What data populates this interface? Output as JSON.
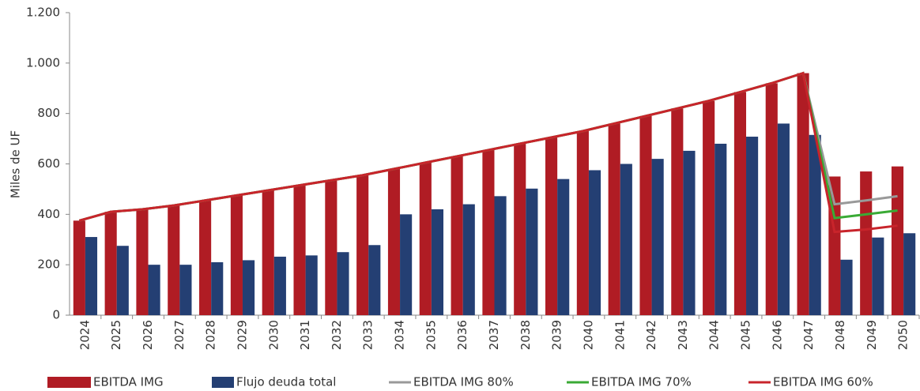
{
  "chart_data": {
    "type": "bar",
    "y_label": "Miles de UF",
    "categories": [
      "2024",
      "2025",
      "2026",
      "2027",
      "2028",
      "2029",
      "2030",
      "2031",
      "2032",
      "2033",
      "2034",
      "2035",
      "2036",
      "2037",
      "2038",
      "2039",
      "2040",
      "2041",
      "2042",
      "2043",
      "2044",
      "2045",
      "2046",
      "2047",
      "2048",
      "2049",
      "2050"
    ],
    "series": [
      {
        "name": "EBITDA IMG",
        "type": "bar",
        "color": "#b01c24",
        "values": [
          375,
          410,
          420,
          435,
          455,
          475,
          495,
          515,
          535,
          555,
          580,
          605,
          630,
          655,
          680,
          705,
          730,
          760,
          790,
          820,
          850,
          885,
          920,
          960,
          550,
          570,
          590
        ]
      },
      {
        "name": "Flujo deuda total",
        "type": "bar",
        "color": "#243f73",
        "values": [
          310,
          275,
          200,
          200,
          210,
          218,
          232,
          237,
          250,
          278,
          400,
          420,
          440,
          472,
          502,
          540,
          575,
          600,
          620,
          652,
          680,
          708,
          760,
          715,
          220,
          308,
          325
        ]
      },
      {
        "name": "EBITDA IMG 80%",
        "type": "line",
        "color": "#999999",
        "values": [
          375,
          410,
          420,
          435,
          455,
          475,
          495,
          515,
          535,
          555,
          580,
          605,
          630,
          655,
          680,
          705,
          730,
          760,
          790,
          820,
          850,
          885,
          920,
          960,
          440,
          455,
          472
        ]
      },
      {
        "name": "EBITDA IMG 70%",
        "type": "line",
        "color": "#3aaa35",
        "values": [
          375,
          410,
          420,
          435,
          455,
          475,
          495,
          515,
          535,
          555,
          580,
          605,
          630,
          655,
          680,
          705,
          730,
          760,
          790,
          820,
          850,
          885,
          920,
          960,
          385,
          400,
          415
        ]
      },
      {
        "name": "EBITDA IMG 60%",
        "type": "line",
        "color": "#c8242b",
        "values": [
          375,
          410,
          420,
          435,
          455,
          475,
          495,
          515,
          535,
          555,
          580,
          605,
          630,
          655,
          680,
          705,
          730,
          760,
          790,
          820,
          850,
          885,
          920,
          960,
          330,
          340,
          355
        ]
      }
    ],
    "ylim": [
      0,
      1200
    ],
    "yticks": [
      0,
      200,
      400,
      600,
      800,
      {
        "value": 1000,
        "label": "1.000"
      },
      {
        "value": 1200,
        "label": "1.200"
      }
    ],
    "grid": false,
    "legend": "bottom"
  }
}
